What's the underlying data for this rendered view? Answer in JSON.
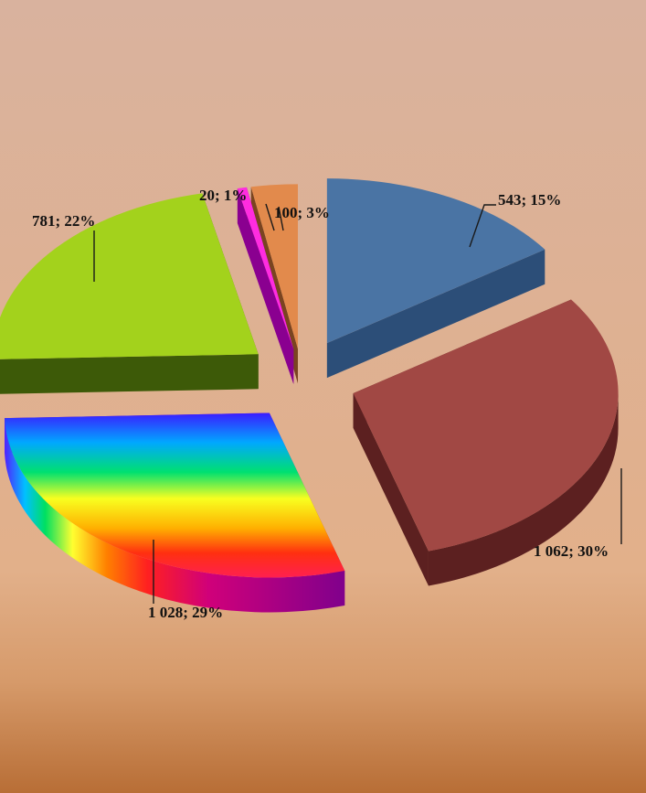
{
  "chart_data": {
    "type": "pie",
    "style": "exploded 3D pie",
    "legend": "none",
    "slices": [
      {
        "value": 543,
        "value_label": "543",
        "percent": 15,
        "label": "543; 15%",
        "top_color": "#4a74a4",
        "side_color": "#2c4e78",
        "fill": "solid"
      },
      {
        "value": 1062,
        "value_label": "1 062",
        "percent": 30,
        "label": "1 062; 30%",
        "top_color": "#a14844",
        "side_color": "#5c2020",
        "fill": "solid"
      },
      {
        "value": 1028,
        "value_label": "1 028",
        "percent": 29,
        "label": "1 028; 29%",
        "top_color": "#ff3030",
        "side_color": "#a0008a",
        "fill": "rainbow"
      },
      {
        "value": 781,
        "value_label": "781",
        "percent": 22,
        "label": "781; 22%",
        "top_color": "#a3d21c",
        "side_color": "#3d5a08",
        "fill": "solid"
      },
      {
        "value": 20,
        "value_label": "20",
        "percent": 1,
        "label": "20; 1%",
        "top_color": "#ff2ce0",
        "side_color": "#8a0090",
        "fill": "solid"
      },
      {
        "value": 100,
        "value_label": "100",
        "percent": 3,
        "label": "100; 3%",
        "top_color": "#e28a4c",
        "side_color": "#7a4420",
        "fill": "solid"
      }
    ],
    "background": {
      "top": "#d9b29e",
      "middle": "#e2b08a",
      "bottom": "#b86e36"
    }
  }
}
